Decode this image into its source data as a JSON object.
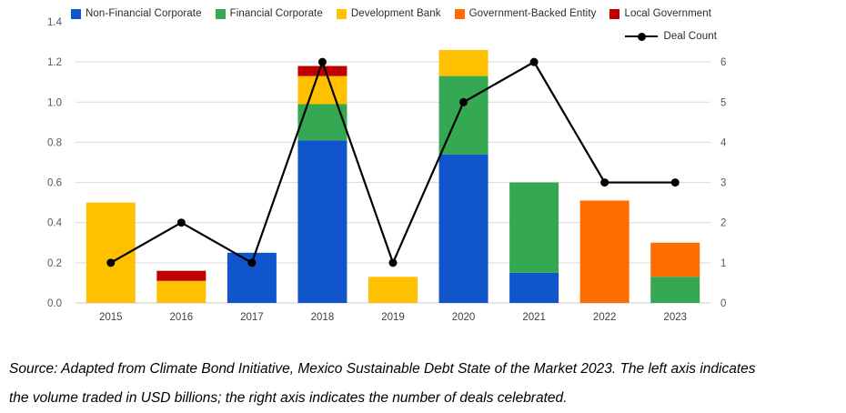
{
  "chart_data": {
    "type": "combo-stacked-bar-line",
    "categories": [
      "2015",
      "2016",
      "2017",
      "2018",
      "2019",
      "2020",
      "2021",
      "2022",
      "2023"
    ],
    "series": [
      {
        "name": "Non-Financial Corporate",
        "color": "#1155CC",
        "values": [
          0,
          0,
          0.25,
          0.81,
          0,
          0.74,
          0.15,
          0,
          0
        ]
      },
      {
        "name": "Financial Corporate",
        "color": "#34A853",
        "values": [
          0,
          0,
          0,
          0.18,
          0,
          0.39,
          0.45,
          0,
          0.13
        ]
      },
      {
        "name": "Development Bank",
        "color": "#FFC000",
        "values": [
          0.5,
          0.11,
          0,
          0.14,
          0.13,
          0.13,
          0,
          0,
          0
        ]
      },
      {
        "name": "Government-Backed Entity",
        "color": "#FF6D01",
        "values": [
          0,
          0,
          0,
          0,
          0,
          0,
          0,
          0.51,
          0.17
        ]
      },
      {
        "name": "Local Government",
        "color": "#C00000",
        "values": [
          0,
          0.05,
          0,
          0.05,
          0,
          0,
          0,
          0,
          0
        ]
      }
    ],
    "line_series": {
      "name": "Deal Count",
      "color": "#000000",
      "axis": "right",
      "values": [
        1,
        2,
        1,
        6,
        1,
        5,
        6,
        3,
        3
      ]
    },
    "left_axis": {
      "min": 0,
      "max": 1.4,
      "step": 0.2,
      "tick_labels": [
        "0.0",
        "0.2",
        "0.4",
        "0.6",
        "0.8",
        "1.0",
        "1.2",
        "1.4"
      ]
    },
    "right_axis": {
      "min": 0,
      "max": 6,
      "step": 1,
      "tick_labels": [
        "0",
        "1",
        "2",
        "3",
        "4",
        "5",
        "6"
      ],
      "max_aligns_with_left_value": 1.2
    },
    "grid": true,
    "gridline_color": "#D9D9D9",
    "axis_line_color": "#C9C9C9",
    "legend_position": "top"
  },
  "source_note": {
    "line1": "Source: Adapted from Climate Bond Initiative, Mexico Sustainable Debt State of the Market 2023. The left axis indicates",
    "line2": "the volume traded in USD billions; the right axis indicates the number of deals celebrated."
  }
}
